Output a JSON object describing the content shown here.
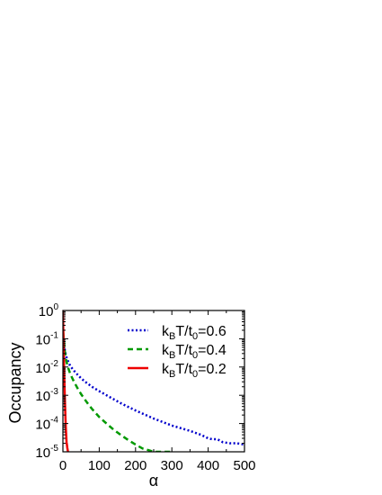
{
  "chart_data": {
    "type": "line",
    "xlabel": "α",
    "ylabel": "Occupancy",
    "xlim": [
      0,
      500
    ],
    "ylim": [
      1e-05,
      1
    ],
    "y_scale": "log",
    "grid": false,
    "legend_position": "top-right",
    "x_ticks": [
      {
        "value": 0,
        "label": "0"
      },
      {
        "value": 100,
        "label": "100"
      },
      {
        "value": 200,
        "label": "200"
      },
      {
        "value": 300,
        "label": "300"
      },
      {
        "value": 400,
        "label": "400"
      },
      {
        "value": 500,
        "label": "500"
      }
    ],
    "y_ticks": [
      {
        "value": 1e-05,
        "base": "10",
        "exp": "-5"
      },
      {
        "value": 0.0001,
        "base": "10",
        "exp": "-4"
      },
      {
        "value": 0.001,
        "base": "10",
        "exp": "-3"
      },
      {
        "value": 0.01,
        "base": "10",
        "exp": "-2"
      },
      {
        "value": 0.1,
        "base": "10",
        "exp": "-1"
      },
      {
        "value": 1,
        "base": "10",
        "exp": "0"
      }
    ],
    "series": [
      {
        "legend": {
          "pre": "k",
          "sub1": "B",
          "mid": "T/t",
          "sub2": "0",
          "post": "=0.6"
        },
        "color": "#0000cc",
        "style": "dotted",
        "x": [
          1,
          3,
          6,
          10,
          15,
          20,
          30,
          40,
          50,
          60,
          80,
          100,
          130,
          160,
          200,
          250,
          300,
          350,
          380,
          400,
          410,
          425,
          440,
          460,
          480,
          500
        ],
        "y": [
          0.12,
          0.06,
          0.035,
          0.022,
          0.015,
          0.011,
          0.0075,
          0.0054,
          0.004,
          0.0031,
          0.002,
          0.0014,
          0.00085,
          0.00052,
          0.00029,
          0.00015,
          8.5e-05,
          5.5e-05,
          4e-05,
          3e-05,
          2.8e-05,
          2.8e-05,
          2.2e-05,
          2e-05,
          2e-05,
          1.8e-05
        ]
      },
      {
        "legend": {
          "pre": "k",
          "sub1": "B",
          "mid": "T/t",
          "sub2": "0",
          "post": "=0.4"
        },
        "color": "#009900",
        "style": "dashed",
        "x": [
          1,
          3,
          6,
          10,
          15,
          20,
          30,
          40,
          50,
          60,
          70,
          80,
          100,
          120,
          140,
          160,
          180,
          200,
          220,
          240,
          250,
          260,
          280,
          300
        ],
        "y": [
          0.17,
          0.07,
          0.03,
          0.015,
          0.009,
          0.0058,
          0.0031,
          0.0018,
          0.0011,
          0.00072,
          0.00048,
          0.00033,
          0.00017,
          0.0001,
          6e-05,
          3.9e-05,
          2.6e-05,
          1.8e-05,
          1.3e-05,
          1.1e-05,
          1e-05,
          1e-05,
          1e-05,
          1e-05
        ]
      },
      {
        "legend": {
          "pre": "k",
          "sub1": "B",
          "mid": "T/t",
          "sub2": "0",
          "post": "=0.2"
        },
        "color": "#ee0000",
        "style": "solid",
        "x": [
          0,
          0.5,
          1,
          2,
          3,
          4,
          5,
          6,
          7,
          8,
          9,
          10,
          11,
          12,
          14
        ],
        "y": [
          1,
          0.5,
          0.2,
          0.05,
          0.013,
          0.0035,
          0.0011,
          0.0004,
          0.00015,
          7e-05,
          3.8e-05,
          2.2e-05,
          1.8e-05,
          1.4e-05,
          1e-05
        ]
      }
    ]
  }
}
